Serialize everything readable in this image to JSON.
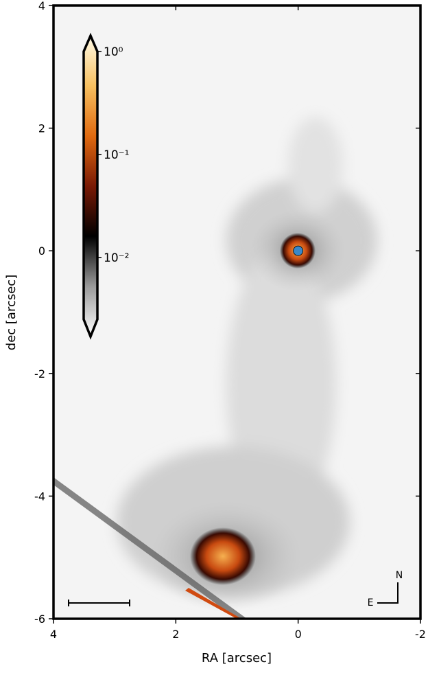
{
  "chart_data": {
    "type": "image",
    "xlabel": "RA [arcsec]",
    "ylabel": "dec [arcsec]",
    "xlim": [
      4,
      -2
    ],
    "xticks": [
      4,
      2,
      0,
      -2
    ],
    "ylim": [
      -6,
      4
    ],
    "yticks": [
      -6,
      -4,
      -2,
      0,
      2,
      4
    ],
    "colorbar": {
      "scale": "log",
      "clim": [
        0.0025,
        1
      ],
      "colormap": [
        "#ffffff",
        "#9a9a9a",
        "#000000",
        "#7a1a05",
        "#e06a10",
        "#f7c060",
        "#fffbe8"
      ],
      "ticks": [
        {
          "value": 1,
          "label": "10⁰"
        },
        {
          "value": 0.1,
          "label": "10⁻¹"
        },
        {
          "value": 0.01,
          "label": "10⁻²"
        }
      ]
    },
    "star": {
      "x": 0,
      "y": 0,
      "color": "#3a88c8"
    },
    "compass": {
      "north": "N",
      "east": "E"
    }
  }
}
